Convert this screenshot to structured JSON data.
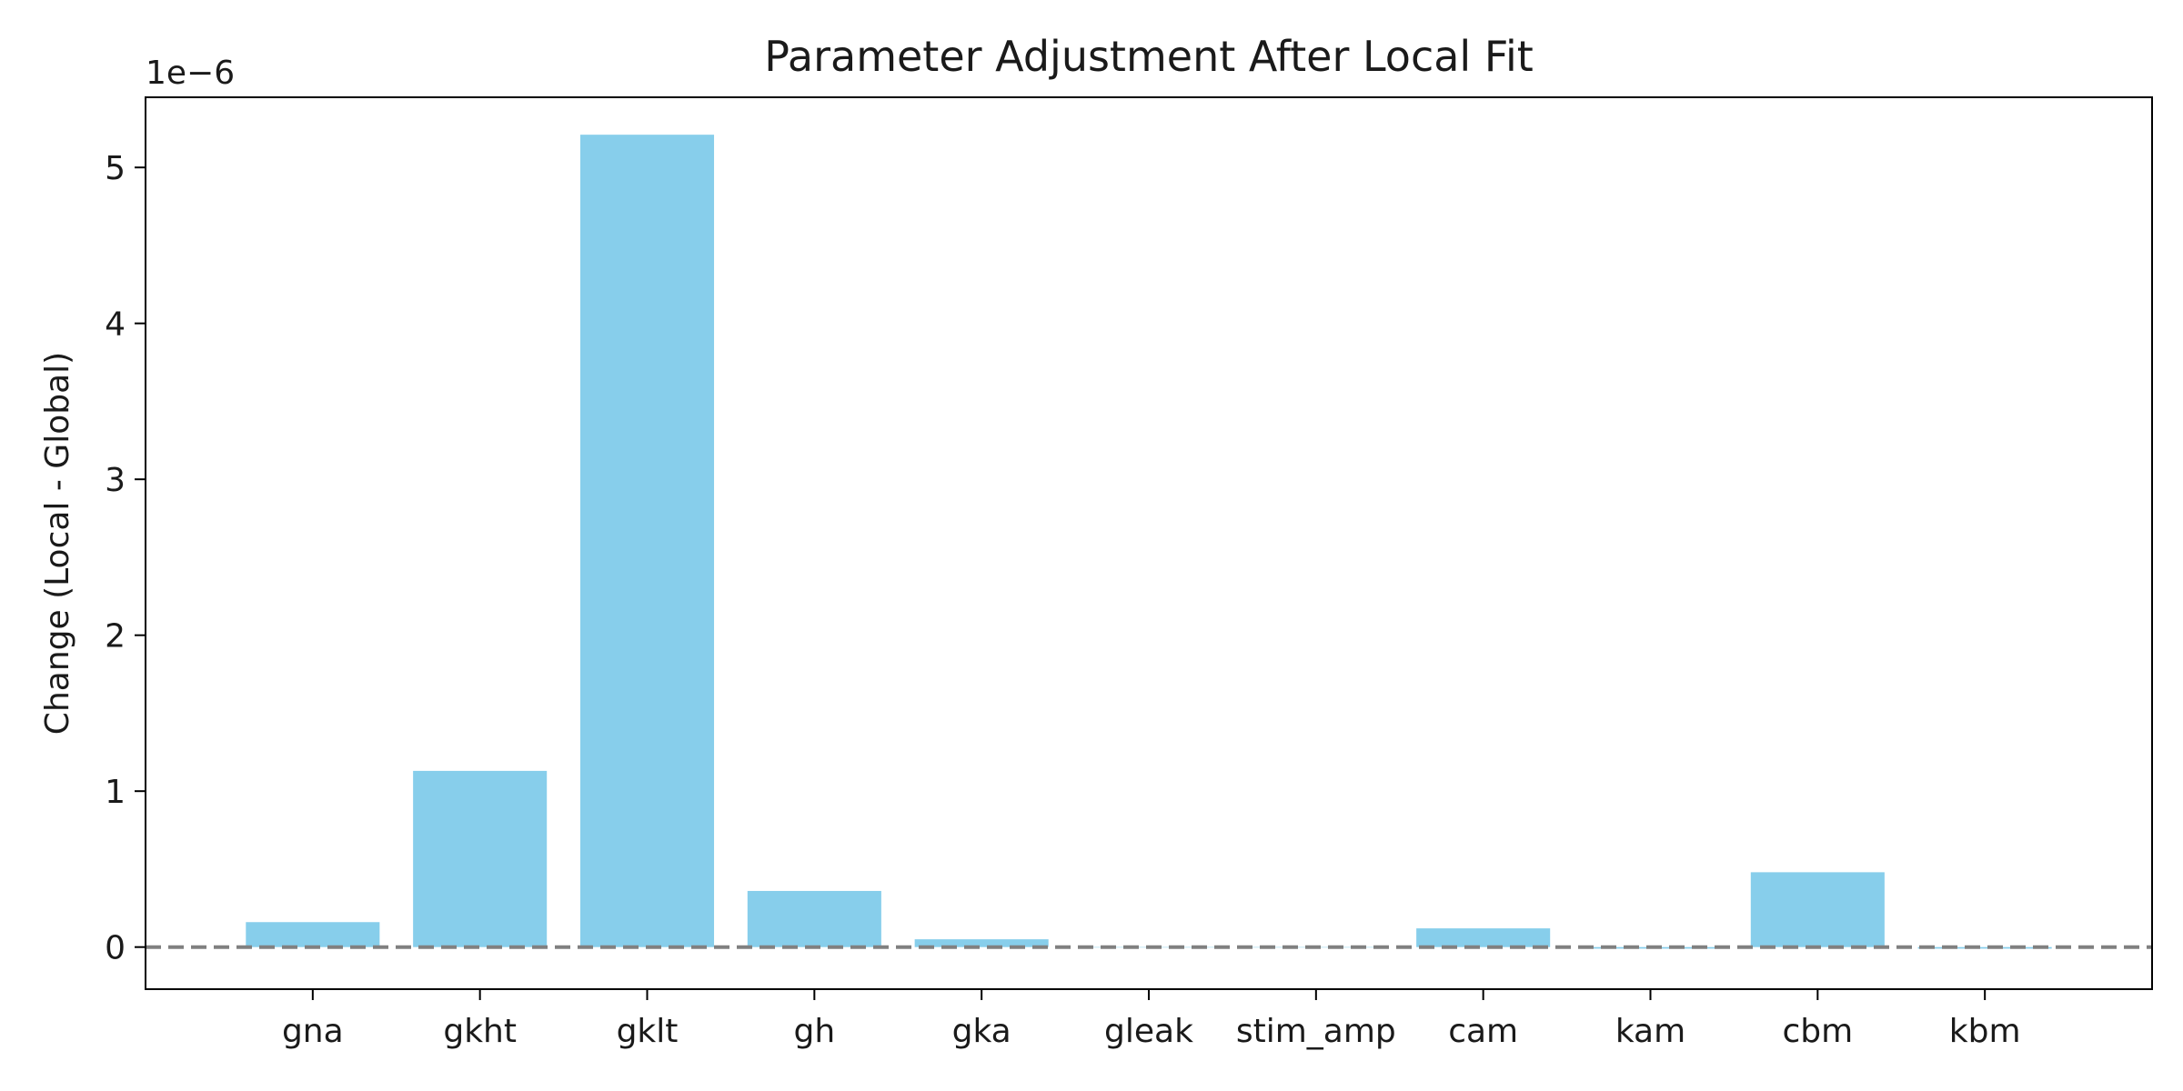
{
  "chart_data": {
    "type": "bar",
    "title": "Parameter Adjustment After Local Fit",
    "xlabel": "",
    "ylabel": "Change (Local - Global)",
    "offset_text": "1e−6",
    "scale": 1e-06,
    "categories": [
      "gna",
      "gkht",
      "gklt",
      "gh",
      "gka",
      "gleak",
      "stim_amp",
      "cam",
      "kam",
      "cbm",
      "kbm"
    ],
    "values": [
      0.16,
      1.13,
      5.21,
      0.36,
      0.05,
      0.0,
      0.0,
      0.12,
      -0.01,
      0.48,
      -0.01
    ],
    "yticks": [
      0,
      1,
      2,
      3,
      4,
      5
    ],
    "ylim": [
      -0.27,
      5.45
    ],
    "xlim": [
      -1,
      11
    ],
    "bar_color": "#87ceeb",
    "baseline": {
      "value": 0,
      "style": "dashed",
      "color": "#808080"
    },
    "grid": false,
    "legend": "none"
  }
}
